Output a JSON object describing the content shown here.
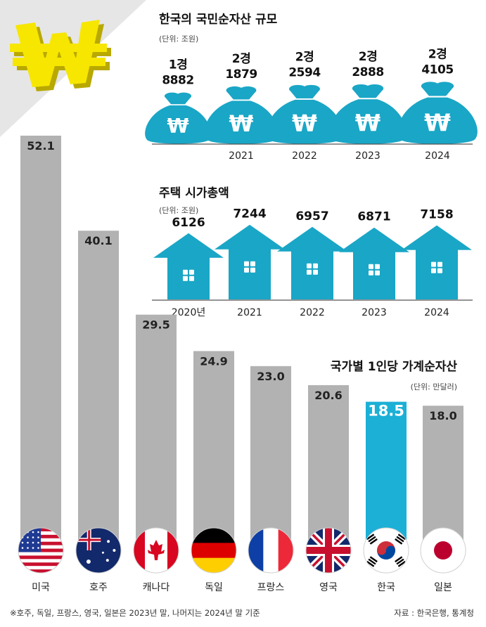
{
  "chart_data": [
    {
      "type": "bar",
      "title": "한국의 국민순자산 규모",
      "unit": "(단위: 조원)",
      "categories": [
        "",
        "2021",
        "2022",
        "2023",
        "2024"
      ],
      "value_labels": [
        [
          "1경",
          "8882"
        ],
        [
          "2경",
          "1879"
        ],
        [
          "2경",
          "2594"
        ],
        [
          "2경",
          "2888"
        ],
        [
          "2경",
          "4105"
        ]
      ],
      "values": [
        18882,
        21879,
        22594,
        22888,
        24105
      ]
    },
    {
      "type": "bar",
      "title": "주택 시가총액",
      "unit": "(단위: 조원)",
      "categories": [
        "2020년",
        "2021",
        "2022",
        "2023",
        "2024"
      ],
      "values": [
        6126,
        7244,
        6957,
        6871,
        7158
      ]
    },
    {
      "type": "bar",
      "title": "국가별 1인당 가계순자산",
      "unit": "(단위: 만달러)",
      "categories": [
        "미국",
        "호주",
        "캐나다",
        "독일",
        "프랑스",
        "영국",
        "한국",
        "일본"
      ],
      "values": [
        52.1,
        40.1,
        29.5,
        24.9,
        23.0,
        20.6,
        18.5,
        18.0
      ],
      "value_labels": [
        "52.1",
        "40.1",
        "29.5",
        "24.9",
        "23.0",
        "20.6",
        "18.5",
        "18.0"
      ],
      "highlight": "한국",
      "flag_icons": [
        "us-flag-icon",
        "australia-flag-icon",
        "canada-flag-icon",
        "germany-flag-icon",
        "france-flag-icon",
        "uk-flag-icon",
        "korea-flag-icon",
        "japan-flag-icon"
      ]
    }
  ],
  "footnote": "※호주, 독일, 프랑스, 영국, 일본은 2023년 말, 나머지는 2024년 말 기준",
  "source": "자료 : 한국은행, 통계청",
  "colors": {
    "teal": "#1aa6c6",
    "gray_bar": "#b2b2b2",
    "highlight_bar": "#1cb0d6",
    "logo_yellow": "#f5e100",
    "background_band": "#e4e4e4"
  },
  "logo_icon": "won-sign-3d-icon"
}
